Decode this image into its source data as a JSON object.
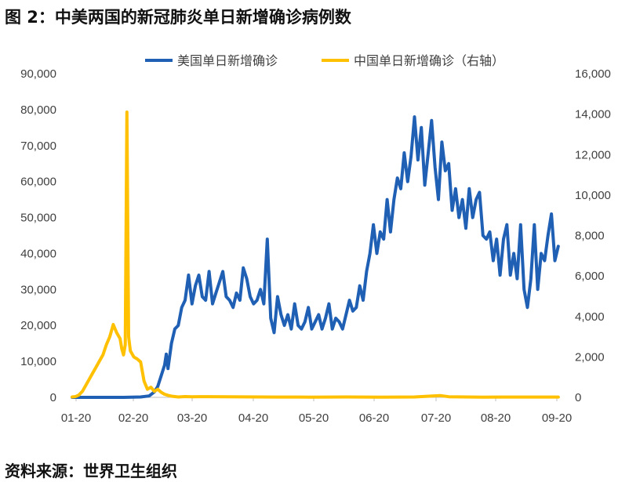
{
  "header": {
    "title": "图 2：中美两国的新冠肺炎单日新增确诊病例数"
  },
  "footer": {
    "source": "资料来源：世界卫生组织"
  },
  "chart_data": {
    "type": "line",
    "xlabel": "",
    "ylabel": "",
    "x_ticks": [
      "01-20",
      "02-20",
      "03-20",
      "04-20",
      "05-20",
      "06-20",
      "07-20",
      "08-20",
      "09-20"
    ],
    "ylim_left": [
      0,
      90000
    ],
    "yticks_left": [
      "0",
      "10,000",
      "20,000",
      "30,000",
      "40,000",
      "50,000",
      "60,000",
      "70,000",
      "80,000",
      "90,000"
    ],
    "ylim_right": [
      0,
      16000
    ],
    "yticks_right": [
      "0",
      "2,000",
      "4,000",
      "6,000",
      "8,000",
      "10,000",
      "12,000",
      "14,000",
      "16,000"
    ],
    "legend_position": "top",
    "grid": false,
    "series": [
      {
        "name": "美国单日新增确诊",
        "axis": "left",
        "color": "#1F5FB4",
        "points": [
          [
            0,
            0
          ],
          [
            30,
            0
          ],
          [
            40,
            100
          ],
          [
            45,
            400
          ],
          [
            48,
            1500
          ],
          [
            50,
            3000
          ],
          [
            52,
            6000
          ],
          [
            54,
            9000
          ],
          [
            55,
            12000
          ],
          [
            56,
            8000
          ],
          [
            58,
            15000
          ],
          [
            60,
            19000
          ],
          [
            62,
            20000
          ],
          [
            64,
            25000
          ],
          [
            66,
            27000
          ],
          [
            68,
            34000
          ],
          [
            70,
            26000
          ],
          [
            72,
            31000
          ],
          [
            74,
            34000
          ],
          [
            76,
            28000
          ],
          [
            78,
            27000
          ],
          [
            80,
            35000
          ],
          [
            82,
            26000
          ],
          [
            84,
            29000
          ],
          [
            86,
            32000
          ],
          [
            88,
            35000
          ],
          [
            90,
            28000
          ],
          [
            92,
            27000
          ],
          [
            94,
            25000
          ],
          [
            96,
            29000
          ],
          [
            98,
            27000
          ],
          [
            100,
            36000
          ],
          [
            102,
            33000
          ],
          [
            104,
            28000
          ],
          [
            106,
            26000
          ],
          [
            108,
            27000
          ],
          [
            110,
            30000
          ],
          [
            112,
            26000
          ],
          [
            114,
            44000
          ],
          [
            116,
            22000
          ],
          [
            118,
            18000
          ],
          [
            120,
            28000
          ],
          [
            122,
            23000
          ],
          [
            124,
            20000
          ],
          [
            126,
            23000
          ],
          [
            128,
            19000
          ],
          [
            130,
            26000
          ],
          [
            132,
            20000
          ],
          [
            134,
            19000
          ],
          [
            136,
            21000
          ],
          [
            138,
            25000
          ],
          [
            140,
            19000
          ],
          [
            142,
            21000
          ],
          [
            144,
            23000
          ],
          [
            146,
            19000
          ],
          [
            148,
            22000
          ],
          [
            150,
            26000
          ],
          [
            152,
            19000
          ],
          [
            154,
            22000
          ],
          [
            156,
            21000
          ],
          [
            158,
            19000
          ],
          [
            160,
            23000
          ],
          [
            162,
            27000
          ],
          [
            164,
            24000
          ],
          [
            166,
            25000
          ],
          [
            168,
            31000
          ],
          [
            170,
            27000
          ],
          [
            172,
            35000
          ],
          [
            174,
            40000
          ],
          [
            176,
            48000
          ],
          [
            178,
            40000
          ],
          [
            180,
            46000
          ],
          [
            182,
            44000
          ],
          [
            184,
            55000
          ],
          [
            186,
            46000
          ],
          [
            188,
            55000
          ],
          [
            190,
            61000
          ],
          [
            192,
            58000
          ],
          [
            194,
            68000
          ],
          [
            196,
            60000
          ],
          [
            198,
            67000
          ],
          [
            200,
            78000
          ],
          [
            202,
            66000
          ],
          [
            204,
            75000
          ],
          [
            206,
            59000
          ],
          [
            208,
            68000
          ],
          [
            210,
            77000
          ],
          [
            212,
            64000
          ],
          [
            214,
            55000
          ],
          [
            216,
            71000
          ],
          [
            218,
            63000
          ],
          [
            220,
            65000
          ],
          [
            222,
            52000
          ],
          [
            224,
            58000
          ],
          [
            226,
            50000
          ],
          [
            228,
            55000
          ],
          [
            230,
            47000
          ],
          [
            232,
            58000
          ],
          [
            234,
            50000
          ],
          [
            236,
            55000
          ],
          [
            238,
            57000
          ],
          [
            240,
            45000
          ],
          [
            242,
            44000
          ],
          [
            244,
            46000
          ],
          [
            246,
            38000
          ],
          [
            248,
            44000
          ],
          [
            250,
            34000
          ],
          [
            252,
            44000
          ],
          [
            254,
            48000
          ],
          [
            256,
            34000
          ],
          [
            258,
            40000
          ],
          [
            260,
            33000
          ],
          [
            262,
            48000
          ],
          [
            264,
            30000
          ],
          [
            266,
            25000
          ],
          [
            268,
            33000
          ],
          [
            270,
            48000
          ],
          [
            272,
            30000
          ],
          [
            274,
            40000
          ],
          [
            276,
            38000
          ],
          [
            278,
            45000
          ],
          [
            280,
            51000
          ],
          [
            282,
            38000
          ],
          [
            284,
            42000
          ]
        ]
      },
      {
        "name": "中国单日新增确诊（右轴）",
        "axis": "right",
        "color": "#FFC000",
        "points": [
          [
            0,
            20
          ],
          [
            2,
            40
          ],
          [
            4,
            120
          ],
          [
            6,
            300
          ],
          [
            8,
            600
          ],
          [
            10,
            900
          ],
          [
            12,
            1200
          ],
          [
            14,
            1500
          ],
          [
            16,
            1800
          ],
          [
            18,
            2100
          ],
          [
            20,
            2600
          ],
          [
            22,
            3000
          ],
          [
            24,
            3600
          ],
          [
            26,
            3200
          ],
          [
            28,
            2900
          ],
          [
            29,
            2400
          ],
          [
            30,
            2100
          ],
          [
            31,
            2600
          ],
          [
            32,
            14100
          ],
          [
            33,
            3000
          ],
          [
            34,
            2300
          ],
          [
            36,
            2000
          ],
          [
            38,
            1900
          ],
          [
            40,
            1750
          ],
          [
            42,
            800
          ],
          [
            44,
            400
          ],
          [
            46,
            500
          ],
          [
            48,
            300
          ],
          [
            50,
            400
          ],
          [
            52,
            250
          ],
          [
            54,
            150
          ],
          [
            56,
            100
          ],
          [
            58,
            60
          ],
          [
            60,
            40
          ],
          [
            62,
            20
          ],
          [
            64,
            30
          ],
          [
            66,
            40
          ],
          [
            70,
            30
          ],
          [
            80,
            35
          ],
          [
            100,
            25
          ],
          [
            120,
            15
          ],
          [
            140,
            10
          ],
          [
            160,
            20
          ],
          [
            180,
            10
          ],
          [
            200,
            20
          ],
          [
            215,
            90
          ],
          [
            220,
            30
          ],
          [
            240,
            10
          ],
          [
            260,
            15
          ],
          [
            284,
            15
          ]
        ]
      }
    ]
  },
  "colors": {
    "us_line": "#1F5FB4",
    "china_line": "#FFC000",
    "axis": "#BFBFBF"
  }
}
